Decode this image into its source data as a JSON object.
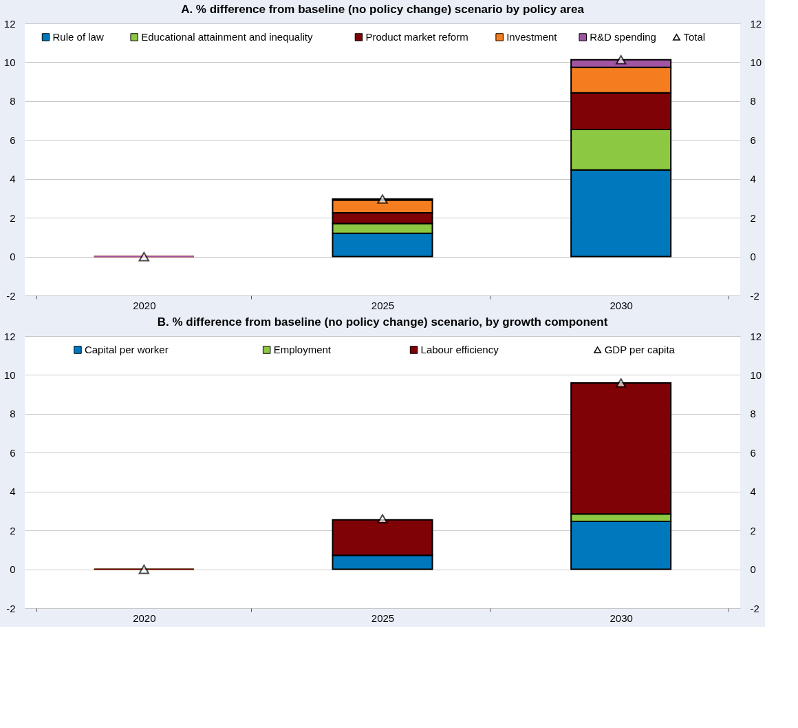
{
  "chart_data": [
    {
      "type": "bar",
      "title": "A. % difference from baseline (no policy change) scenario by policy area",
      "stacked": true,
      "categories": [
        "2020",
        "2025",
        "2030"
      ],
      "series": [
        {
          "name": "Rule of law",
          "color": "#0078be",
          "values": [
            0,
            1.2,
            4.46
          ]
        },
        {
          "name": "Educational attainment and inequality",
          "color": "#8cc841",
          "values": [
            0,
            0.5,
            2.08
          ]
        },
        {
          "name": "Product market reform",
          "color": "#7f0306",
          "values": [
            0,
            0.55,
            1.89
          ]
        },
        {
          "name": "Investment",
          "color": "#f47d20",
          "values": [
            0,
            0.66,
            1.31
          ]
        },
        {
          "name": "R&D spending",
          "color": "#a154a1",
          "values": [
            0,
            0.05,
            0.39
          ]
        },
        {
          "name": "Total",
          "type": "scatter",
          "marker": "triangle",
          "color": "#ffffff",
          "values": [
            0,
            2.96,
            10.13
          ]
        }
      ],
      "ylim": [
        -2,
        12
      ],
      "yticks": [
        -2,
        0,
        2,
        4,
        6,
        8,
        10,
        12
      ],
      "y2lim": [
        -2,
        12
      ],
      "y2ticks": [
        -2,
        0,
        2,
        4,
        6,
        8,
        10,
        12
      ],
      "grid": "y",
      "legend": "top"
    },
    {
      "type": "bar",
      "title": "B. % difference from baseline (no policy change) scenario, by growth component",
      "stacked": true,
      "categories": [
        "2020",
        "2025",
        "2030"
      ],
      "series": [
        {
          "name": "Capital per worker",
          "color": "#0078be",
          "values": [
            0,
            0.72,
            2.47
          ]
        },
        {
          "name": "Employment",
          "color": "#8cc841",
          "values": [
            0,
            null,
            0.38
          ]
        },
        {
          "name": "Labour efficiency",
          "color": "#7f0306",
          "values": [
            0,
            1.83,
            6.74
          ]
        },
        {
          "name": "GDP per capita",
          "type": "scatter",
          "marker": "triangle",
          "color": "#ffffff",
          "values": [
            0,
            2.6,
            9.59
          ]
        }
      ],
      "ylim": [
        -2,
        12
      ],
      "yticks": [
        -2,
        0,
        2,
        4,
        6,
        8,
        10,
        12
      ],
      "y2lim": [
        -2,
        12
      ],
      "y2ticks": [
        -2,
        0,
        2,
        4,
        6,
        8,
        10,
        12
      ],
      "grid": "y",
      "legend": "top"
    }
  ]
}
